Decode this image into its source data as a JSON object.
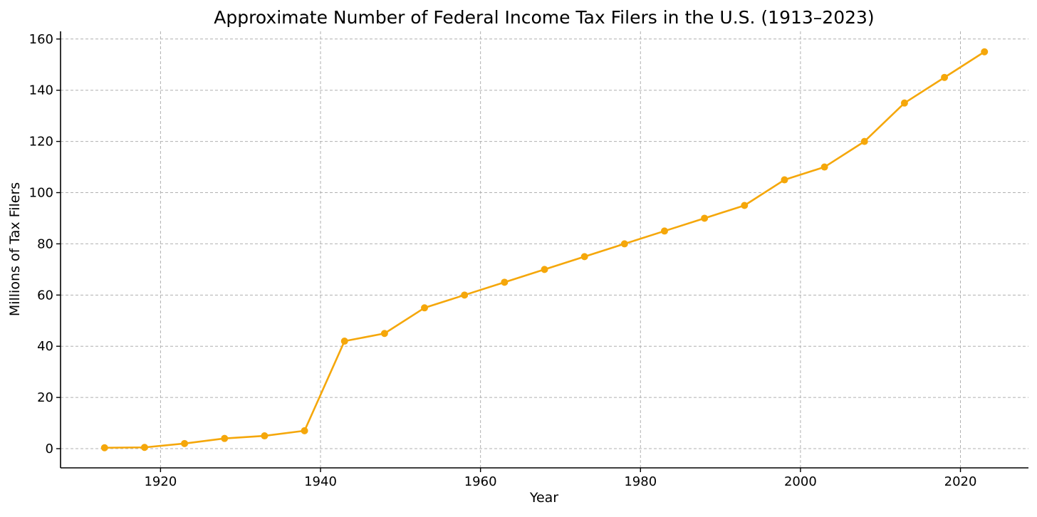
{
  "chart_data": {
    "type": "line",
    "title": "Approximate Number of Federal Income Tax Filers in the U.S. (1913–2023)",
    "xlabel": "Year",
    "ylabel": "Millions of Tax Filers",
    "xlim": [
      1907.5,
      2028.5
    ],
    "ylim": [
      -7.5,
      163
    ],
    "xticks": [
      1920,
      1940,
      1960,
      1980,
      2000,
      2020
    ],
    "yticks": [
      0,
      20,
      40,
      60,
      80,
      100,
      120,
      140,
      160
    ],
    "grid": true,
    "color": "#f5a70a",
    "series": [
      {
        "x": [
          1913,
          1918,
          1923,
          1928,
          1933,
          1938,
          1943,
          1948,
          1953,
          1958,
          1963,
          1968,
          1973,
          1978,
          1983,
          1988,
          1993,
          1998,
          2003,
          2008,
          2013,
          2018,
          2023
        ],
        "values": [
          0.36,
          0.5,
          2,
          4,
          5,
          7,
          42,
          45,
          55,
          60,
          65,
          70,
          75,
          80,
          85,
          90,
          95,
          105,
          110,
          120,
          135,
          145,
          155
        ]
      }
    ]
  }
}
